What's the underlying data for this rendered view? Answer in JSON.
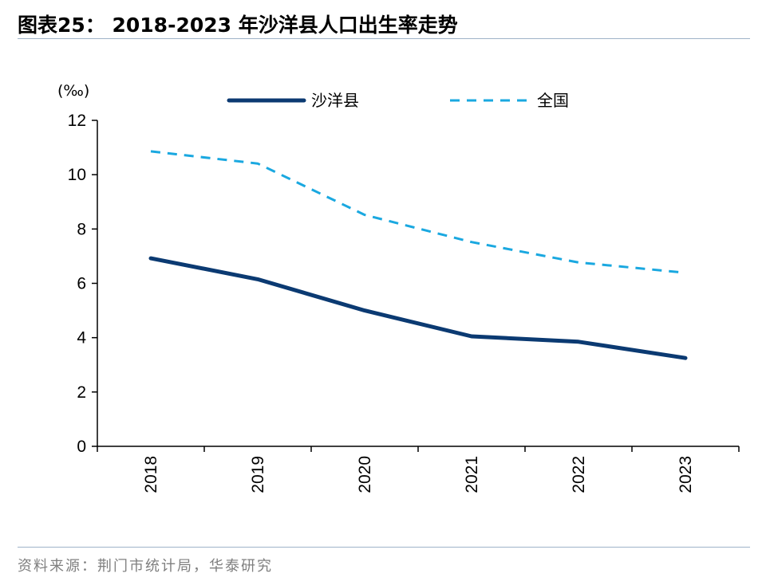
{
  "title": "图表25：  2018-2023 年沙洋县人口出生率走势",
  "source": "资料来源：荆门市统计局，华泰研究",
  "chart_data": {
    "type": "line",
    "unit": "(‰)",
    "categories": [
      "2018",
      "2019",
      "2020",
      "2021",
      "2022",
      "2023"
    ],
    "ylim": [
      0,
      12
    ],
    "yticks": [
      "0",
      "2",
      "4",
      "6",
      "8",
      "10",
      "12"
    ],
    "legend_position": "top",
    "grid": false,
    "series": [
      {
        "name": "沙洋县",
        "values": [
          6.92,
          6.15,
          5.0,
          4.05,
          3.85,
          3.25
        ],
        "color": "#0b3a72",
        "style": "solid"
      },
      {
        "name": "全国",
        "values": [
          10.86,
          10.41,
          8.52,
          7.52,
          6.77,
          6.39
        ],
        "color": "#1aa8e0",
        "style": "dashed"
      }
    ]
  }
}
